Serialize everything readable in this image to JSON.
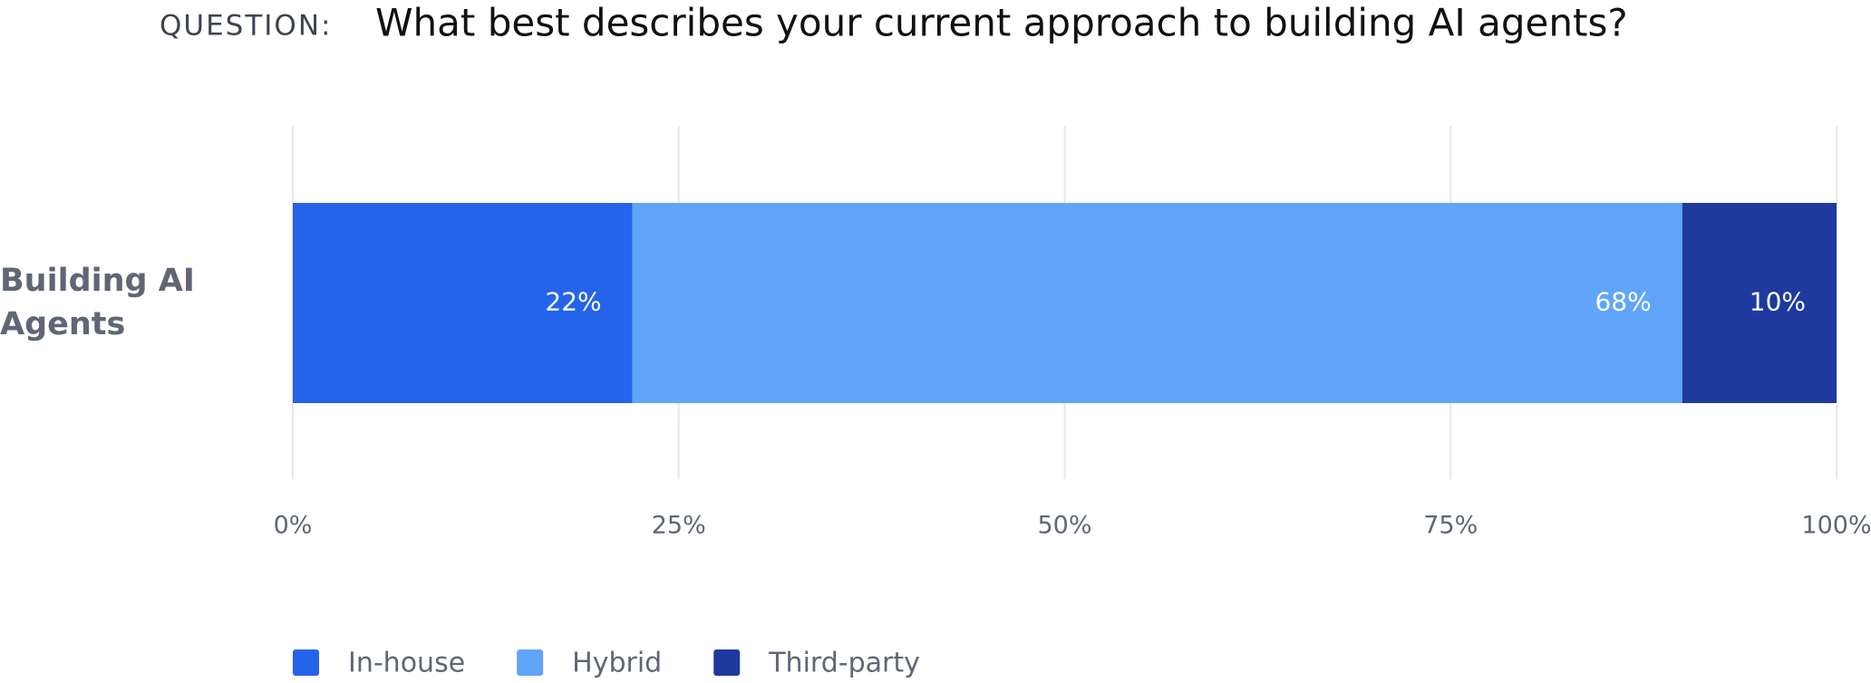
{
  "chart_data": {
    "type": "stacked-bar-horizontal",
    "title_label": "QUESTION:",
    "title": "What best describes your current approach to building AI agents?",
    "categories": [
      "Building AI Agents"
    ],
    "series": [
      {
        "name": "In-house",
        "color": "#2563eb",
        "values": [
          22
        ],
        "value_labels": [
          "22%"
        ]
      },
      {
        "name": "Hybrid",
        "color": "#60a5fa",
        "values": [
          68
        ],
        "value_labels": [
          "68%"
        ]
      },
      {
        "name": "Third-party",
        "color": "#1e3a9f",
        "values": [
          10
        ],
        "value_labels": [
          "10%"
        ]
      }
    ],
    "xlim": [
      0,
      100
    ],
    "xticks": [
      {
        "value": 0,
        "label": "0%"
      },
      {
        "value": 25,
        "label": "25%"
      },
      {
        "value": 50,
        "label": "50%"
      },
      {
        "value": 75,
        "label": "75%"
      },
      {
        "value": 100,
        "label": "100%"
      }
    ],
    "grid": true,
    "legend": "bottom-left"
  }
}
